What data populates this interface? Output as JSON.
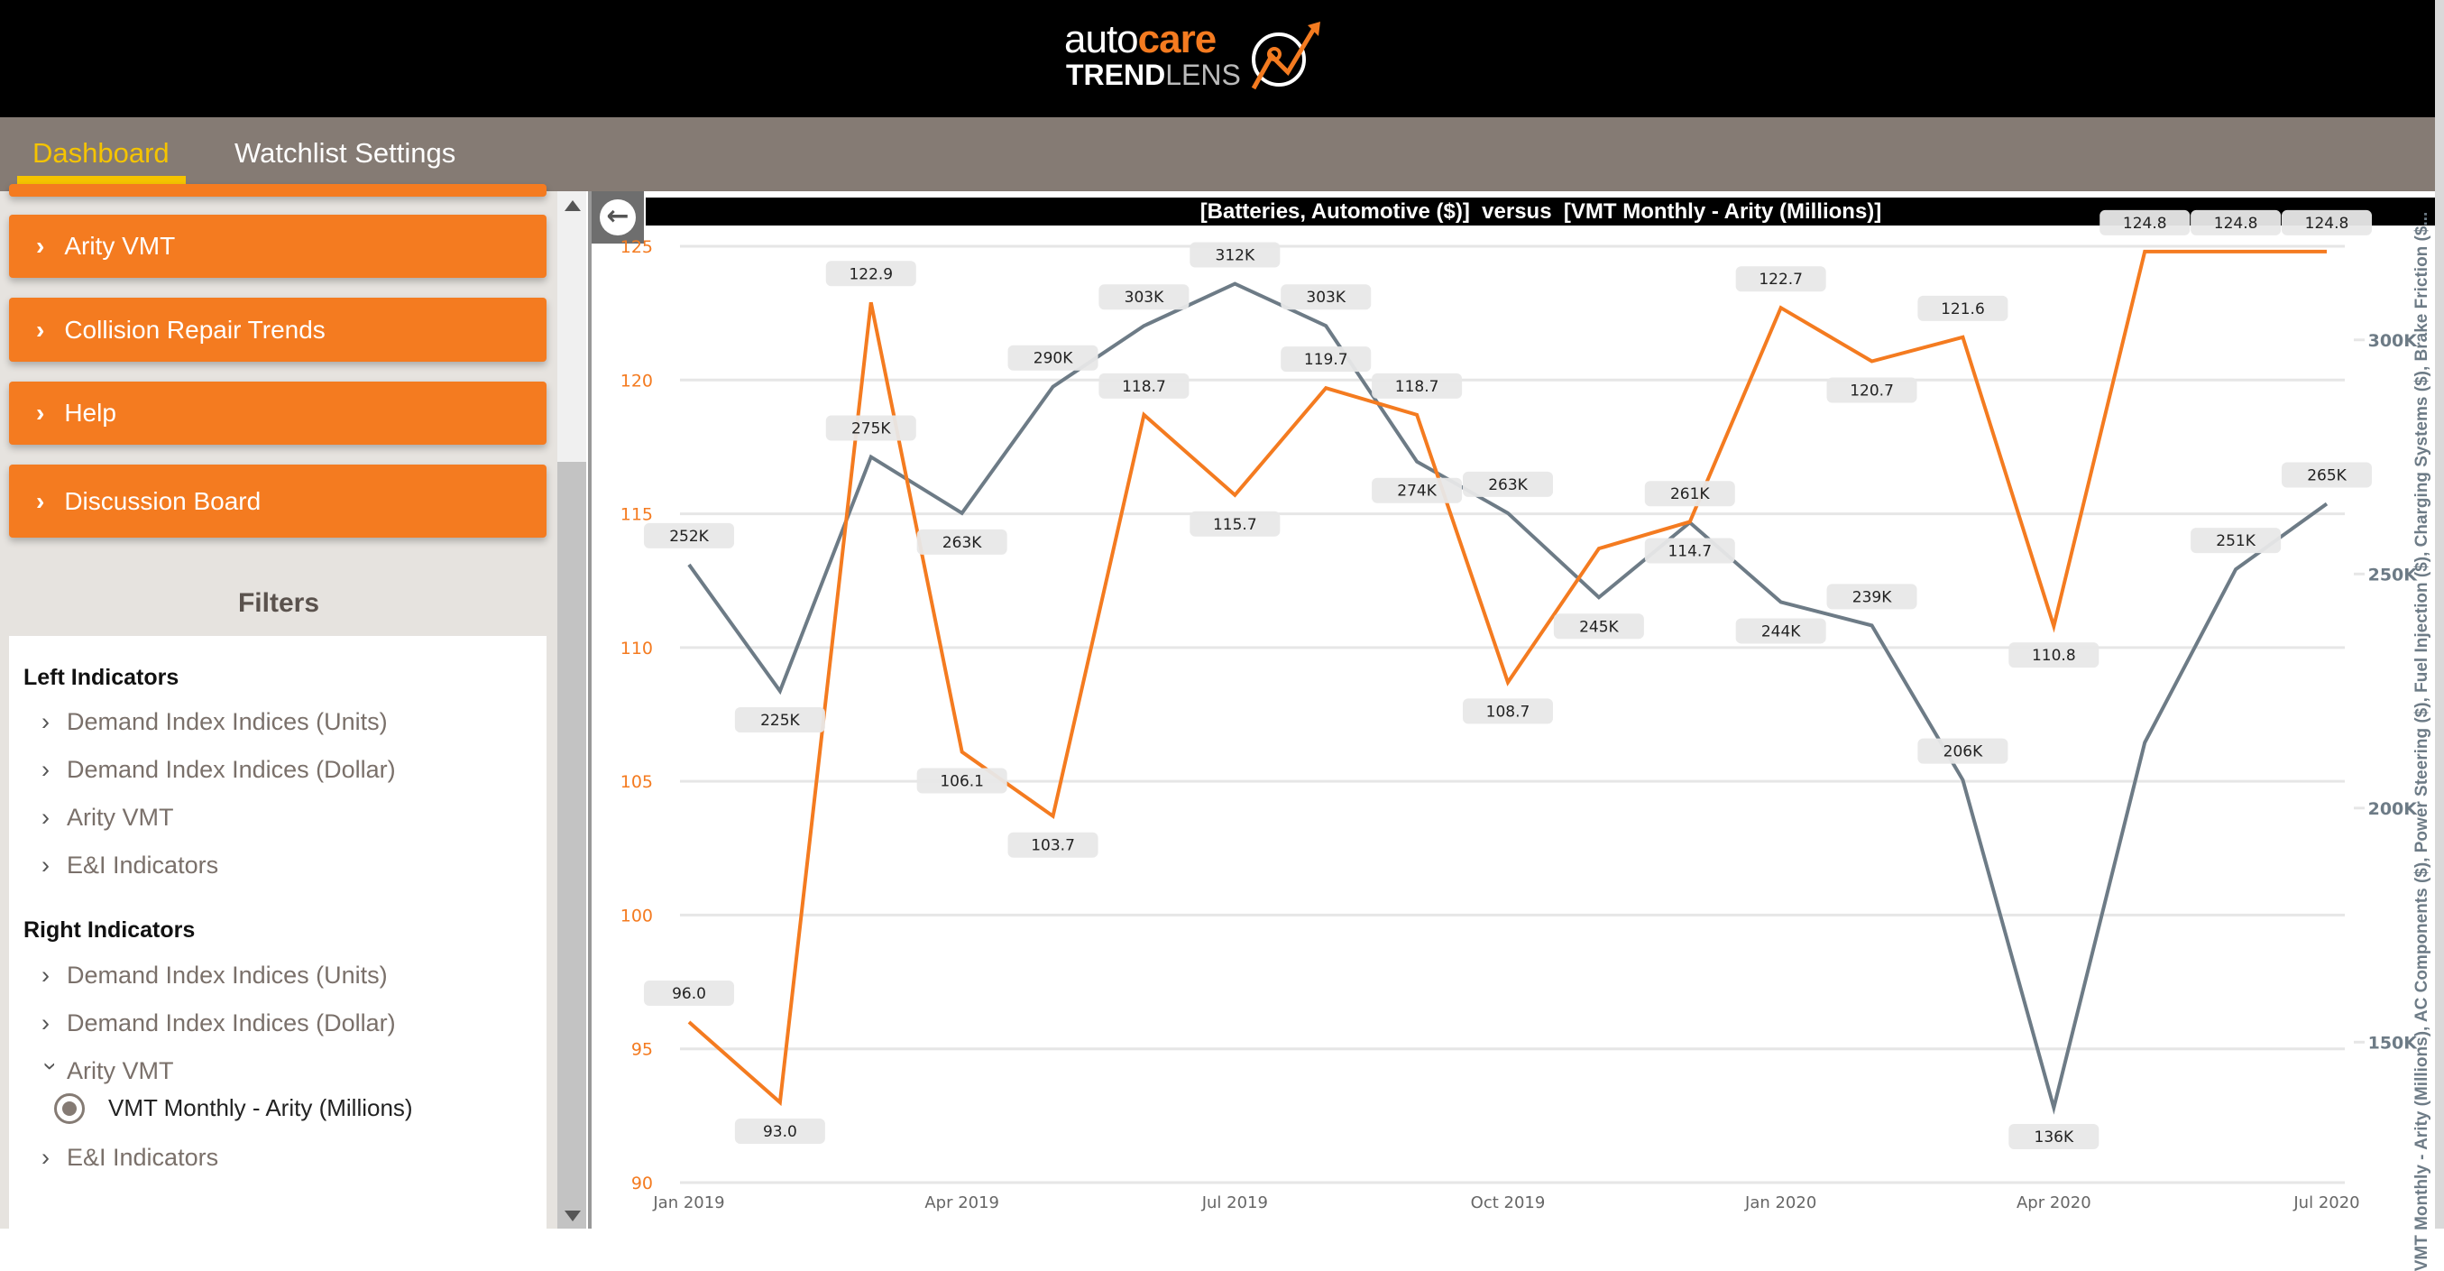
{
  "header": {
    "logo_text": {
      "auto": "auto",
      "care": "care",
      "trend": "TREND",
      "lens": "LENS"
    }
  },
  "tabs": [
    {
      "label": "Dashboard",
      "active": true
    },
    {
      "label": "Watchlist Settings",
      "active": false
    }
  ],
  "sidebar": {
    "nav_buttons": [
      {
        "label": "Arity VMT"
      },
      {
        "label": "Collision Repair Trends"
      },
      {
        "label": "Help"
      },
      {
        "label": "Discussion Board"
      }
    ],
    "filters_title": "Filters",
    "left_indicators": {
      "title": "Left Indicators",
      "items": [
        "Demand Index Indices (Units)",
        "Demand Index Indices (Dollar)",
        "Arity VMT",
        "E&I Indicators"
      ]
    },
    "right_indicators": {
      "title": "Right Indicators",
      "items": [
        "Demand Index Indices (Units)",
        "Demand Index Indices (Dollar)",
        "Arity VMT",
        "E&I Indicators"
      ],
      "expanded": "Arity VMT",
      "selected_option": "VMT Monthly - Arity (Millions)"
    }
  },
  "colors": {
    "accent": "#f47b20",
    "tab_bar": "#857b74",
    "active_tab": "#f5c400",
    "series_left": "#f47b20",
    "series_right": "#6d7b86"
  },
  "chart_data": {
    "type": "line",
    "title": "[Batteries, Automotive ($)]  versus  [VMT Monthly - Arity (Millions)]",
    "x": [
      "Jan 2019",
      "Feb 2019",
      "Mar 2019",
      "Apr 2019",
      "May 2019",
      "Jun 2019",
      "Jul 2019",
      "Aug 2019",
      "Sep 2019",
      "Oct 2019",
      "Nov 2019",
      "Dec 2019",
      "Jan 2020",
      "Feb 2020",
      "Mar 2020",
      "Apr 2020",
      "May 2020",
      "Jun 2020",
      "Jul 2020"
    ],
    "x_tick_labels": [
      "Jan 2019",
      "Apr 2019",
      "Jul 2019",
      "Oct 2019",
      "Jan 2020",
      "Apr 2020",
      "Jul 2020"
    ],
    "series": [
      {
        "axis": "left",
        "color": "#f47b20",
        "values": [
          96.0,
          93.0,
          122.9,
          106.1,
          103.7,
          118.7,
          115.7,
          119.7,
          118.7,
          108.7,
          113.7,
          114.7,
          122.7,
          120.7,
          121.6,
          110.8,
          124.8,
          124.8,
          124.8
        ],
        "labels": [
          "96.0",
          "93.0",
          "122.9",
          "106.1",
          "103.7",
          "118.7",
          "115.7",
          "119.7",
          "118.7",
          "108.7",
          "",
          "114.7",
          "122.7",
          "120.7",
          "121.6",
          "110.8",
          "124.8",
          "124.8",
          "124.8"
        ]
      },
      {
        "axis": "right",
        "color": "#6d7b86",
        "values": [
          252,
          225,
          275,
          263,
          290,
          303,
          312,
          303,
          274,
          263,
          245,
          261,
          244,
          239,
          206,
          136,
          214,
          251,
          265
        ],
        "labels": [
          "252K",
          "225K",
          "275K",
          "263K",
          "290K",
          "303K",
          "312K",
          "303K",
          "274K",
          "263K",
          "245K",
          "261K",
          "244K",
          "239K",
          "206K",
          "136K",
          "",
          "251K",
          "265K"
        ]
      }
    ],
    "y_left": {
      "ylim": [
        90,
        125
      ],
      "ticks": [
        90,
        95,
        100,
        105,
        110,
        115,
        120,
        125
      ],
      "tick_labels": [
        "90",
        "95",
        "100",
        "105",
        "110",
        "115",
        "120",
        "125"
      ]
    },
    "y_right": {
      "ylim": [
        120,
        320
      ],
      "ticks": [
        150,
        200,
        250,
        300
      ],
      "tick_labels": [
        "150K",
        "200K",
        "250K",
        "300K"
      ],
      "label": "VMT Monthly - Arity (Millions), AC Components ($), Power Steering ($), Fuel Injection ($), Charging Systems ($), Brake Friction ($..."
    },
    "grid": true
  }
}
